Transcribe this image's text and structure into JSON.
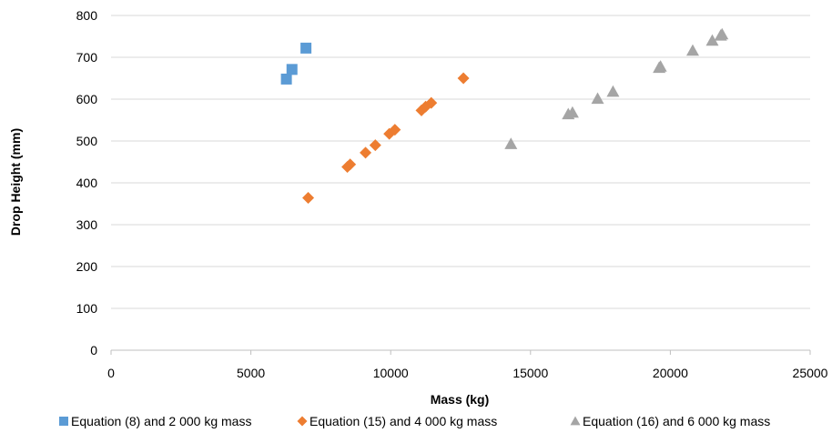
{
  "chart_data": {
    "type": "scatter",
    "title": "",
    "xlabel": "Mass (kg)",
    "ylabel": "Drop Height (mm)",
    "xlim": [
      0,
      25000
    ],
    "ylim": [
      0,
      800
    ],
    "xticks": [
      0,
      5000,
      10000,
      15000,
      20000,
      25000
    ],
    "xtick_labels": [
      "0",
      "5000",
      "10000",
      "15000",
      "20000",
      "25000"
    ],
    "yticks": [
      0,
      100,
      200,
      300,
      400,
      500,
      600,
      700,
      800
    ],
    "ytick_labels": [
      "0",
      "100",
      "200",
      "300",
      "400",
      "500",
      "600",
      "700",
      "800"
    ],
    "grid": "horizontal",
    "legend_position": "bottom",
    "series": [
      {
        "name": "Equation (8) and 2 000 kg mass",
        "marker": "square",
        "color": "#5b9bd5",
        "points": [
          [
            6270,
            648
          ],
          [
            6470,
            671
          ],
          [
            6970,
            722
          ]
        ]
      },
      {
        "name": "Equation (15) and 4 000 kg mass",
        "marker": "diamond",
        "color": "#ed7d31",
        "points": [
          [
            7050,
            364
          ],
          [
            8450,
            438
          ],
          [
            8550,
            444
          ],
          [
            9100,
            472
          ],
          [
            9450,
            490
          ],
          [
            9950,
            517
          ],
          [
            10150,
            527
          ],
          [
            11100,
            573
          ],
          [
            11250,
            582
          ],
          [
            11450,
            591
          ],
          [
            12600,
            650
          ]
        ]
      },
      {
        "name": "Equation (16) and 6 000 kg mass",
        "marker": "triangle",
        "color": "#a5a5a5",
        "points": [
          [
            14300,
            493
          ],
          [
            16350,
            564
          ],
          [
            16500,
            568
          ],
          [
            17400,
            601
          ],
          [
            17950,
            618
          ],
          [
            19600,
            675
          ],
          [
            19650,
            678
          ],
          [
            20800,
            716
          ],
          [
            21500,
            740
          ],
          [
            21800,
            752
          ],
          [
            21850,
            755
          ]
        ]
      }
    ]
  }
}
